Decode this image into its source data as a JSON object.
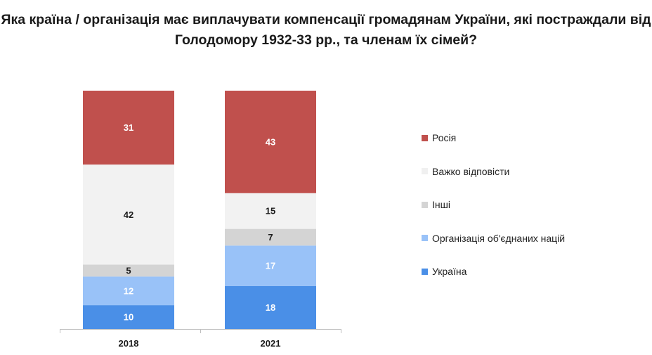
{
  "chart_data": {
    "type": "bar",
    "stacked": true,
    "title_lines": [
      "Яка країна / організація має виплачувати компенсації громадянам України, які постраждали від",
      "Голодомору 1932-33 рр., та членам їх сімей?"
    ],
    "categories": [
      "2018",
      "2021"
    ],
    "ylim": [
      0,
      100
    ],
    "series": [
      {
        "name": "Україна",
        "color": "#4a8fe7",
        "label_color": "#ffffff",
        "values": [
          10,
          18
        ]
      },
      {
        "name": "Організація об'єднаних націй",
        "color": "#99c2f8",
        "label_color": "#ffffff",
        "values": [
          12,
          17
        ]
      },
      {
        "name": "Інші",
        "color": "#d4d4d4",
        "label_color": "#1a1a1a",
        "values": [
          5,
          7
        ]
      },
      {
        "name": "Важко відповісти",
        "color": "#f2f2f2",
        "label_color": "#1a1a1a",
        "values": [
          42,
          15
        ]
      },
      {
        "name": "Росія",
        "color": "#c0504d",
        "label_color": "#ffffff",
        "values": [
          31,
          43
        ]
      }
    ],
    "legend_order": [
      "Росія",
      "Важко відповісти",
      "Інші",
      "Організація об'єднаних націй",
      "Україна"
    ],
    "legend_position": "right",
    "grid": false
  }
}
